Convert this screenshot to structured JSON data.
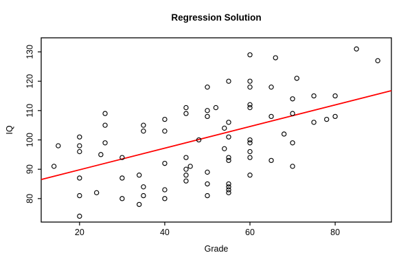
{
  "chart_data": {
    "type": "scatter",
    "title": "Regression Solution",
    "xlabel": "Grade",
    "ylabel": "IQ",
    "xlim": [
      11.0,
      93.2
    ],
    "ylim": [
      72.0,
      134.8
    ],
    "x_ticks": [
      20,
      40,
      60,
      80
    ],
    "y_ticks": [
      80,
      90,
      100,
      110,
      120,
      130
    ],
    "grid": false,
    "legend": null,
    "point_color": "#000000",
    "marker": "open-circle",
    "points": [
      [
        14,
        91
      ],
      [
        15,
        98
      ],
      [
        20,
        101
      ],
      [
        20,
        98
      ],
      [
        20,
        96
      ],
      [
        20,
        87
      ],
      [
        20,
        81
      ],
      [
        20,
        74
      ],
      [
        24,
        82
      ],
      [
        25,
        95
      ],
      [
        26,
        109
      ],
      [
        26,
        105
      ],
      [
        26,
        99
      ],
      [
        30,
        94
      ],
      [
        30,
        87
      ],
      [
        30,
        80
      ],
      [
        34,
        88
      ],
      [
        34,
        78
      ],
      [
        35,
        105
      ],
      [
        35,
        103
      ],
      [
        35,
        84
      ],
      [
        35,
        81
      ],
      [
        40,
        107
      ],
      [
        40,
        103
      ],
      [
        40,
        92
      ],
      [
        40,
        83
      ],
      [
        40,
        80
      ],
      [
        45,
        111
      ],
      [
        45,
        109
      ],
      [
        45,
        94
      ],
      [
        45,
        90
      ],
      [
        45,
        88
      ],
      [
        45,
        86
      ],
      [
        46,
        91
      ],
      [
        48,
        100
      ],
      [
        50,
        118
      ],
      [
        50,
        110
      ],
      [
        50,
        108
      ],
      [
        50,
        89
      ],
      [
        50,
        85
      ],
      [
        50,
        81
      ],
      [
        52,
        111
      ],
      [
        54,
        104
      ],
      [
        54,
        97
      ],
      [
        55,
        120
      ],
      [
        55,
        106
      ],
      [
        55,
        101
      ],
      [
        55,
        94
      ],
      [
        55,
        93
      ],
      [
        55,
        85
      ],
      [
        55,
        84
      ],
      [
        55,
        83
      ],
      [
        55,
        82
      ],
      [
        60,
        129
      ],
      [
        60,
        120
      ],
      [
        60,
        118
      ],
      [
        60,
        112
      ],
      [
        60,
        111
      ],
      [
        60,
        100
      ],
      [
        60,
        99
      ],
      [
        60,
        96
      ],
      [
        60,
        94
      ],
      [
        60,
        88
      ],
      [
        65,
        118
      ],
      [
        65,
        108
      ],
      [
        65,
        93
      ],
      [
        66,
        128
      ],
      [
        68,
        102
      ],
      [
        70,
        114
      ],
      [
        70,
        109
      ],
      [
        70,
        99
      ],
      [
        70,
        91
      ],
      [
        71,
        121
      ],
      [
        75,
        115
      ],
      [
        75,
        106
      ],
      [
        78,
        107
      ],
      [
        80,
        115
      ],
      [
        80,
        108
      ],
      [
        85,
        131
      ],
      [
        90,
        127
      ]
    ],
    "regression_line": {
      "x1": 11.0,
      "y1": 86.5,
      "x2": 93.2,
      "y2": 116.8,
      "color": "#ff0000",
      "equation_slope": 0.369,
      "equation_intercept": 82.4
    }
  }
}
